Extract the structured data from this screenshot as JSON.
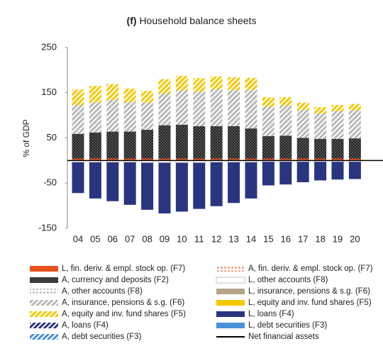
{
  "chart_data": {
    "type": "bar",
    "panel": "(f)",
    "title": "Household balance sheets",
    "y_label": "% of GDP",
    "categories": [
      "04",
      "05",
      "06",
      "07",
      "08",
      "09",
      "10",
      "11",
      "12",
      "13",
      "14",
      "15",
      "16",
      "17",
      "18",
      "19",
      "20"
    ],
    "ylim": [
      -150,
      250
    ],
    "yticks": [
      -150,
      -50,
      50,
      150,
      250
    ],
    "stacked": true,
    "series": [
      {
        "name": "L, fin. deriv. & empl. stock op. (F7)",
        "style": "solid",
        "color": "#e8501c",
        "values": [
          4,
          4,
          4,
          4,
          4,
          4,
          4,
          4,
          4,
          4,
          4,
          4,
          4,
          4,
          4,
          4,
          4
        ]
      },
      {
        "name": "A, fin. deriv. & empl. stock op. (F7)",
        "style": "dots",
        "color": "#f08a6a",
        "values": [
          null,
          null,
          null,
          null,
          null,
          null,
          null,
          null,
          null,
          null,
          null,
          null,
          null,
          null,
          null,
          null,
          null
        ]
      },
      {
        "name": "A, currency and deposits (F2)",
        "style": "checker",
        "color": "#333333",
        "values": [
          55,
          58,
          60,
          60,
          64,
          74,
          75,
          72,
          72,
          72,
          67,
          50,
          51,
          46,
          44,
          44,
          45
        ]
      },
      {
        "name": "L, other accounts (F8)",
        "style": "solid",
        "color": "#ffffff",
        "values": [
          -4,
          -4,
          -4,
          -4,
          -5,
          -5,
          -5,
          -5,
          -4,
          -4,
          -4,
          -3,
          -3,
          -3,
          -3,
          -3,
          -3
        ]
      },
      {
        "name": "A, other accounts (F8)",
        "style": "dots",
        "color": "#b0b0b0",
        "values": [
          null,
          null,
          null,
          null,
          null,
          null,
          null,
          null,
          null,
          null,
          null,
          null,
          null,
          null,
          null,
          null,
          null
        ]
      },
      {
        "name": "L, insurance, pensions & s.g. (F6)",
        "style": "solid",
        "color": "#b5a48a",
        "values": [
          null,
          null,
          null,
          null,
          null,
          null,
          null,
          null,
          null,
          null,
          null,
          null,
          null,
          null,
          null,
          null,
          null
        ]
      },
      {
        "name": "A, insurance, pensions & s.g. (F6)",
        "style": "hatch",
        "color": "#b8b8b8",
        "values": [
          64,
          66,
          70,
          65,
          60,
          70,
          76,
          76,
          82,
          80,
          85,
          65,
          67,
          62,
          56,
          61,
          62
        ]
      },
      {
        "name": "L, equity and inv. fund shares (F5)",
        "style": "solid",
        "color": "#f5c800",
        "values": [
          null,
          null,
          null,
          null,
          null,
          null,
          null,
          null,
          null,
          null,
          null,
          null,
          null,
          null,
          null,
          null,
          null
        ]
      },
      {
        "name": "A, equity and inv. fund shares (F5)",
        "style": "hatch",
        "color": "#f5c800",
        "values": [
          34,
          37,
          35,
          30,
          26,
          32,
          32,
          30,
          28,
          28,
          27,
          21,
          18,
          16,
          14,
          14,
          14
        ]
      },
      {
        "name": "L, loans (F4)",
        "style": "solid",
        "color": "#2a3580",
        "values": [
          -68,
          -80,
          -86,
          -94,
          -104,
          -112,
          -108,
          -102,
          -97,
          -90,
          -80,
          -52,
          -50,
          -45,
          -41,
          -39,
          -38
        ]
      },
      {
        "name": "A, loans (F4)",
        "style": "hatch",
        "color": "#2a3580",
        "values": [
          null,
          null,
          null,
          null,
          null,
          null,
          null,
          null,
          null,
          null,
          null,
          null,
          null,
          null,
          null,
          null,
          null
        ]
      },
      {
        "name": "L, debt securities (F3)",
        "style": "solid",
        "color": "#4a90d9",
        "values": [
          null,
          null,
          null,
          null,
          null,
          null,
          null,
          null,
          null,
          null,
          null,
          null,
          null,
          null,
          null,
          null,
          null
        ]
      },
      {
        "name": "A, debt securities (F3)",
        "style": "hatch",
        "color": "#4a90d9",
        "values": [
          null,
          null,
          null,
          null,
          null,
          null,
          null,
          null,
          null,
          null,
          null,
          null,
          null,
          null,
          null,
          null,
          null
        ]
      },
      {
        "name": "Net financial assets",
        "style": "line",
        "color": "#000000",
        "values": [
          null,
          null,
          null,
          null,
          null,
          null,
          null,
          null,
          null,
          null,
          null,
          null,
          null,
          null,
          null,
          null,
          null
        ]
      }
    ],
    "legend_order": [
      0,
      2,
      4,
      6,
      8,
      10,
      12,
      1,
      3,
      5,
      7,
      9,
      11,
      13
    ]
  }
}
